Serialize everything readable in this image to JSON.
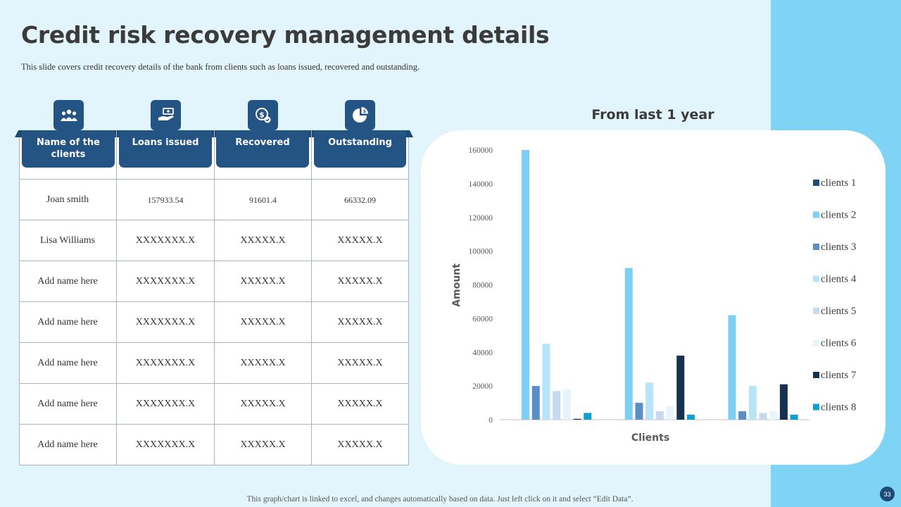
{
  "slide": {
    "title": "Credit risk recovery management details",
    "subtitle": "This slide covers credit recovery details of the bank from clients such as loans issued, recovered and outstanding.",
    "footer": "This graph/chart is linked to excel,  and changes automatically based on data. Just left click on it and select “Edit Data”.",
    "page_number": "33"
  },
  "colors": {
    "header": "#245483",
    "background": "#e2f5fd",
    "side_band": "#7fd3f5"
  },
  "table": {
    "icons": [
      "users-icon",
      "hand-money-icon",
      "dollar-coin-icon",
      "pie-chart-icon"
    ],
    "headers": [
      "Name of the clients",
      "Loans issued",
      "Recovered",
      "Outstanding"
    ],
    "rows": [
      [
        "Joan smith",
        "157933.54",
        "91601.4",
        "66332.09"
      ],
      [
        "Lisa Williams",
        "XXXXXXX.X",
        "XXXXX.X",
        "XXXXX.X"
      ],
      [
        "Add name here",
        "XXXXXXX.X",
        "XXXXX.X",
        "XXXXX.X"
      ],
      [
        "Add name here",
        "XXXXXXX.X",
        "XXXXX.X",
        "XXXXX.X"
      ],
      [
        "Add name here",
        "XXXXXXX.X",
        "XXXXX.X",
        "XXXXX.X"
      ],
      [
        "Add name here",
        "XXXXXXX.X",
        "XXXXX.X",
        "XXXXX.X"
      ],
      [
        "Add name here",
        "XXXXXXX.X",
        "XXXXX.X",
        "XXXXX.X"
      ]
    ]
  },
  "chart_data": {
    "type": "bar",
    "title": "From last 1 year",
    "xlabel": "Clients",
    "ylabel": "Amount",
    "ylim": [
      0,
      160000
    ],
    "yticks": [
      0,
      20000,
      40000,
      60000,
      80000,
      100000,
      120000,
      140000,
      160000
    ],
    "categories": [
      "",
      "",
      ""
    ],
    "grid": false,
    "legend_position": "right",
    "series": [
      {
        "name": "clients 1",
        "color": "#1f4e79",
        "values": [
          0,
          0,
          0
        ]
      },
      {
        "name": "clients 2",
        "color": "#7ecff4",
        "values": [
          160000,
          90000,
          62000
        ]
      },
      {
        "name": "clients 3",
        "color": "#5b8ec6",
        "values": [
          20000,
          10000,
          5000
        ]
      },
      {
        "name": "clients 4",
        "color": "#b7e4f8",
        "values": [
          45000,
          22000,
          20000
        ]
      },
      {
        "name": "clients 5",
        "color": "#c6d9ee",
        "values": [
          17000,
          5000,
          4000
        ]
      },
      {
        "name": "clients 6",
        "color": "#e6f5fd",
        "values": [
          18000,
          8000,
          5000
        ]
      },
      {
        "name": "clients 7",
        "color": "#16324f",
        "values": [
          500,
          38000,
          21000
        ]
      },
      {
        "name": "clients 8",
        "color": "#0f9fd0",
        "values": [
          4000,
          3000,
          3000
        ]
      }
    ]
  }
}
